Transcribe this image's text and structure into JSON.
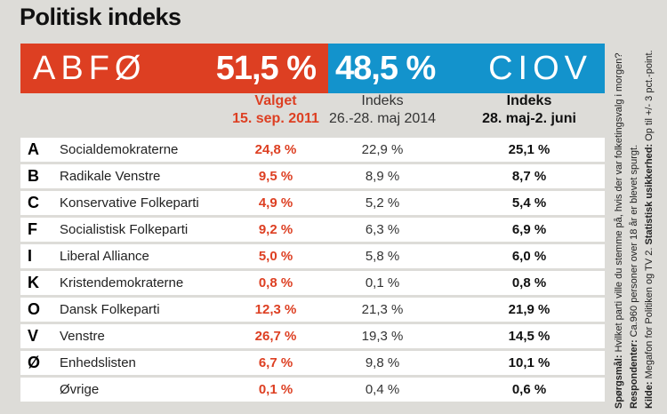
{
  "title": "Politisk indeks",
  "banner": {
    "left_label": "ABFØ",
    "left_value": "51,5 %",
    "right_value": "48,5 %",
    "right_label": "CIOV",
    "left_color": "#dd3f22",
    "right_color": "#1393cc"
  },
  "headers": [
    {
      "line1": "Valget",
      "line2": "15. sep. 2011"
    },
    {
      "line1": "Indeks",
      "line2": "26.-28. maj 2014"
    },
    {
      "line1": "Indeks",
      "line2": "28. maj-2. juni"
    }
  ],
  "chart_data": {
    "type": "table",
    "columns": [
      "Valget 15. sep. 2011",
      "Indeks 26.-28. maj 2014",
      "Indeks 28. maj-2. juni"
    ],
    "rows": [
      {
        "letter": "A",
        "party": "Socialdemokraterne",
        "values": [
          "24,8 %",
          "22,9 %",
          "25,1 %"
        ]
      },
      {
        "letter": "B",
        "party": "Radikale Venstre",
        "values": [
          "9,5 %",
          "8,9 %",
          "8,7 %"
        ]
      },
      {
        "letter": "C",
        "party": "Konservative Folkeparti",
        "values": [
          "4,9 %",
          "5,2 %",
          "5,4 %"
        ]
      },
      {
        "letter": "F",
        "party": "Socialistisk Folkeparti",
        "values": [
          "9,2 %",
          "6,3 %",
          "6,9 %"
        ]
      },
      {
        "letter": "I",
        "party": "Liberal Alliance",
        "values": [
          "5,0 %",
          "5,8 %",
          "6,0 %"
        ]
      },
      {
        "letter": "K",
        "party": "Kristendemokraterne",
        "values": [
          "0,8 %",
          "0,1 %",
          "0,8 %"
        ]
      },
      {
        "letter": "O",
        "party": "Dansk Folkeparti",
        "values": [
          "12,3 %",
          "21,3 %",
          "21,9 %"
        ]
      },
      {
        "letter": "V",
        "party": "Venstre",
        "values": [
          "26,7 %",
          "19,3 %",
          "14,5 %"
        ]
      },
      {
        "letter": "Ø",
        "party": "Enhedslisten",
        "values": [
          "6,7 %",
          "9,8 %",
          "10,1 %"
        ]
      },
      {
        "letter": "",
        "party": "Øvrige",
        "values": [
          "0,1 %",
          "0,4 %",
          "0,6 %"
        ]
      }
    ]
  },
  "note": {
    "q_label": "Spørgsmål:",
    "q_text": " Hvilket parti ville du stemme på, hvis der var folketingsvalg i morgen?",
    "r_label": "Respondenter:",
    "r_text": " Ca.960 personer over 18 år er blevet spurgt.",
    "k_label": "Kilde:",
    "k_text": " Megafon for Politiken og TV 2. ",
    "s_label": "Statistisk usikkerhed:",
    "s_text": " Op til +/- 3 pct.-point."
  }
}
